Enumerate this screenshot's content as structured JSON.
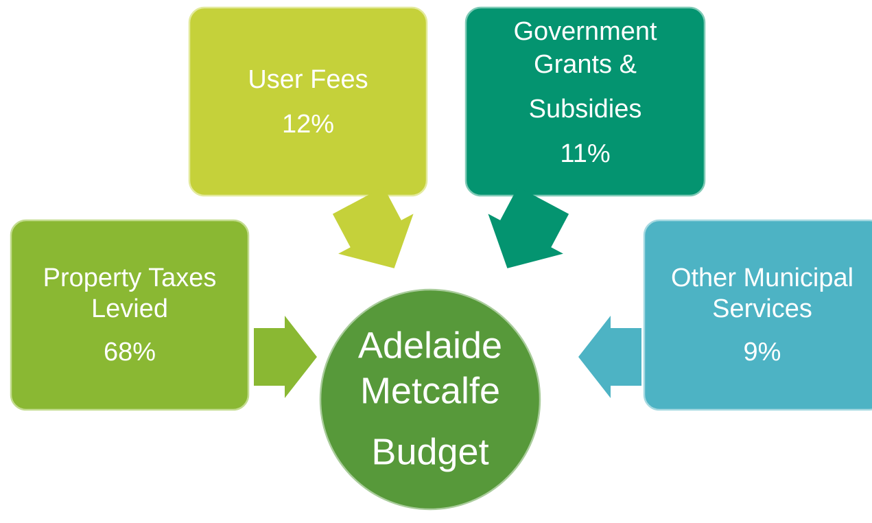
{
  "center": {
    "lines": [
      "Adelaide",
      "Metcalfe",
      "Budget"
    ]
  },
  "nodes": [
    {
      "lines": [
        "Property Taxes",
        "Levied"
      ],
      "share": "68%"
    },
    {
      "lines": [
        "User Fees"
      ],
      "share": "12%"
    },
    {
      "lines": [
        "Government",
        "Grants &",
        "Subsidies"
      ],
      "share": "11%"
    },
    {
      "lines": [
        "Other Municipal",
        "Services"
      ],
      "share": "9%"
    }
  ]
}
